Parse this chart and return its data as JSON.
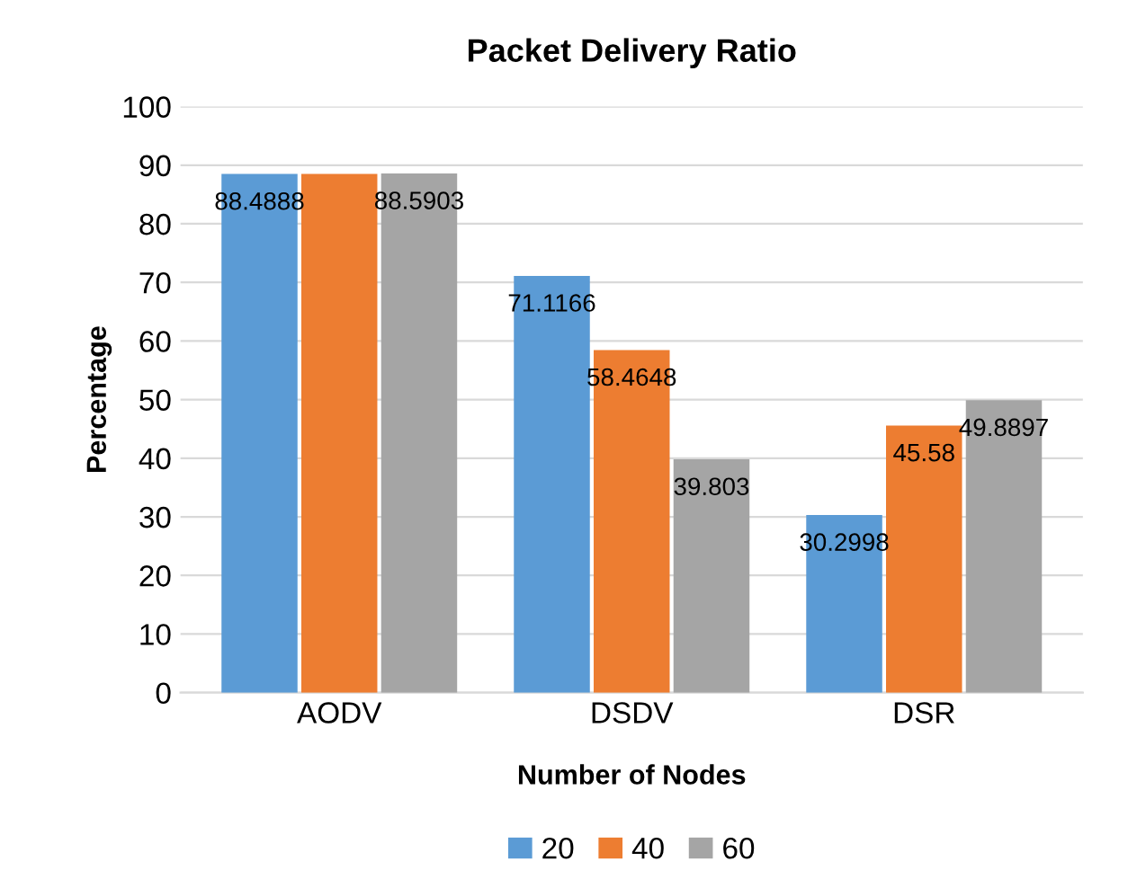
{
  "chart_data": {
    "type": "bar",
    "title": "Packet Delivery Ratio",
    "xlabel": "Number of Nodes",
    "ylabel": "Percentage",
    "categories": [
      "AODV",
      "DSDV",
      "DSR"
    ],
    "series": [
      {
        "name": "20",
        "color": "#5b9bd5",
        "values": [
          88.4888,
          71.1166,
          30.2998
        ],
        "value_labels": [
          "88.4888",
          "71.1166",
          "30.2998"
        ]
      },
      {
        "name": "40",
        "color": "#ed7d31",
        "values": [
          88.5,
          58.4648,
          45.58
        ],
        "value_labels": [
          null,
          "58.4648",
          "45.58"
        ]
      },
      {
        "name": "60",
        "color": "#a5a5a5",
        "values": [
          88.5903,
          39.803,
          49.8897
        ],
        "value_labels": [
          "88.5903",
          "39.803",
          "49.8897"
        ]
      }
    ],
    "ylim": [
      0,
      100
    ],
    "yticks": [
      0,
      10,
      20,
      30,
      40,
      50,
      60,
      70,
      80,
      90,
      100
    ],
    "grid": "y",
    "legend": "bottom"
  }
}
